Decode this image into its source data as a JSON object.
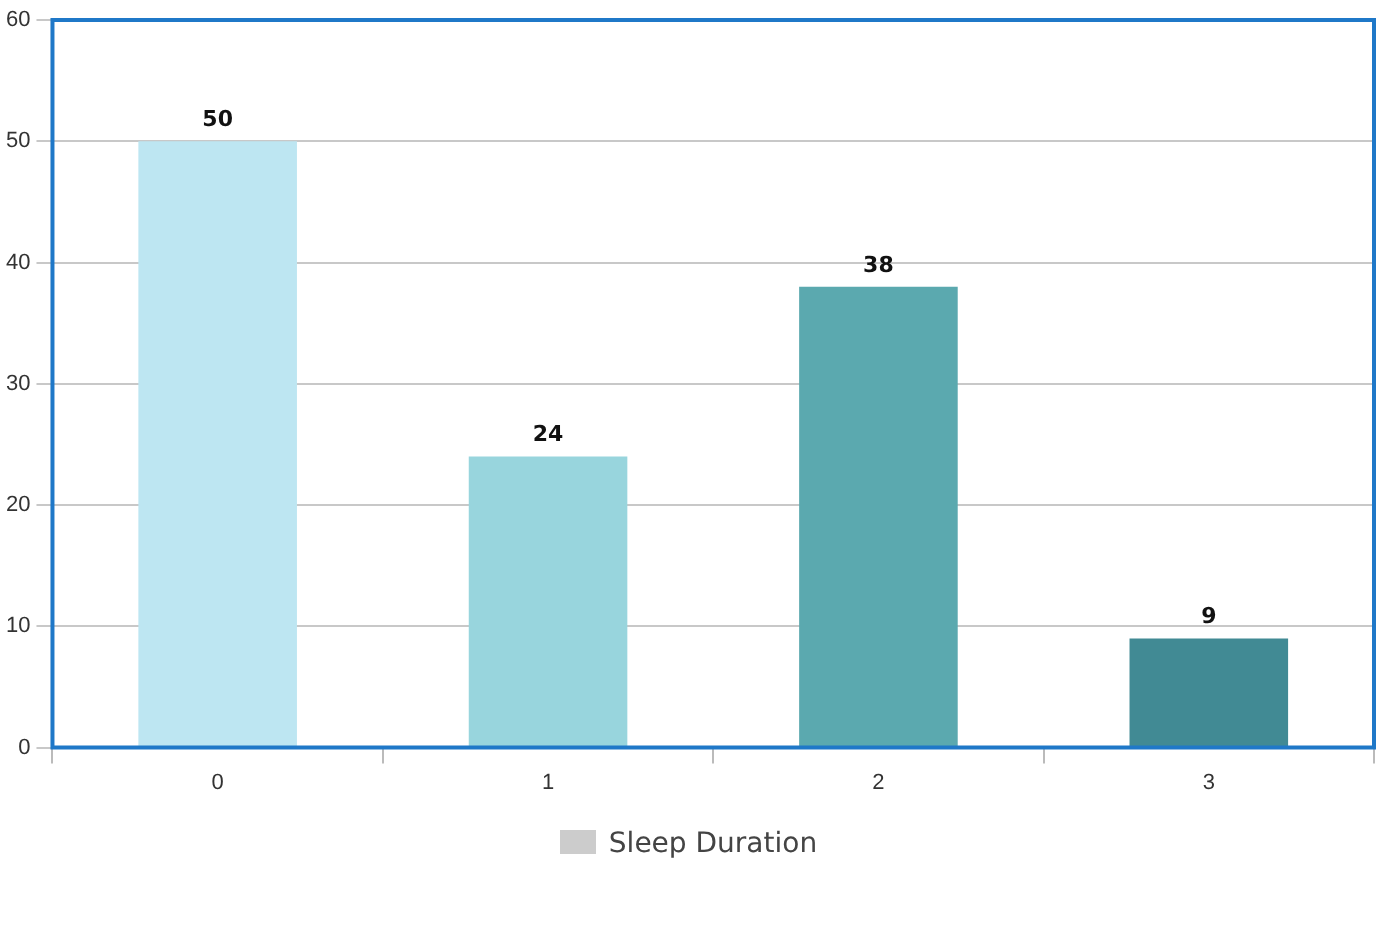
{
  "chart_data": {
    "type": "bar",
    "categories": [
      "0",
      "1",
      "2",
      "3"
    ],
    "series": [
      {
        "name": "Sleep Duration",
        "color": "#cccccc",
        "colors": [
          "#bde6f2",
          "#98d5dd",
          "#5ba9af",
          "#418a94"
        ],
        "values": [
          50,
          24,
          38,
          9
        ]
      }
    ],
    "ylim": [
      0,
      60
    ],
    "yticks": [
      0,
      10,
      20,
      30,
      40,
      50,
      60
    ],
    "grid": "y",
    "legend": "bottom",
    "data_labels": true
  }
}
